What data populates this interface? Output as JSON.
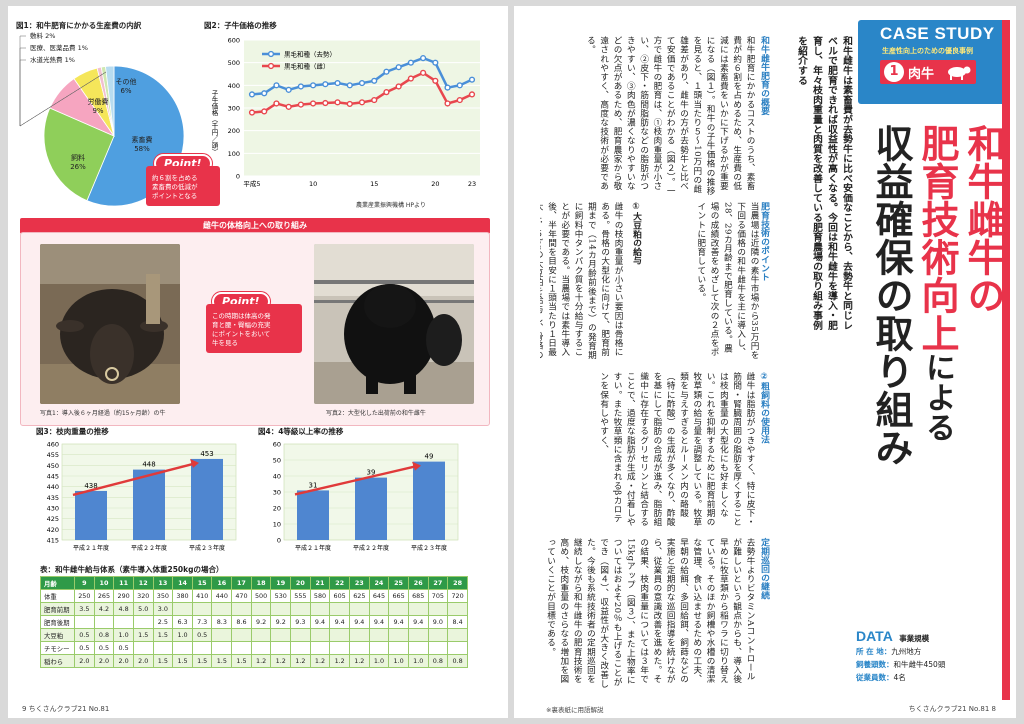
{
  "left_page": {
    "fig1": {
      "title": "図1：和牛肥育にかかる生産費の内訳",
      "point_label": "Point!",
      "point_text": [
        "約６割を占める",
        "素畜費の低減が",
        "ポイントとなる"
      ]
    },
    "fig2": {
      "title": "図2：子牛価格の推移",
      "y_label": "子牛価格（千円／頭）",
      "source": "農業産業振興機構 HPより"
    },
    "banner": "雌牛の体格向上への取り組み",
    "photo1": {
      "caption": "写真1：導入後６ヶ月経過（約15ヶ月齢）の牛",
      "point_label": "Point!",
      "point_text": [
        "この時期は体高の発",
        "育と腰・臀幅の充実",
        "にポイントをおいて",
        "牛を見る"
      ]
    },
    "photo2": {
      "caption": "写真2：大型化した出荷前の和牛雌牛"
    },
    "fig3": {
      "title": "図3：枝肉重量の推移"
    },
    "fig4": {
      "title": "図4：4等級以上率の推移"
    },
    "table": {
      "title": "表：和牛雌牛給与体系（素牛導入体重250kgの場合）",
      "header": [
        "月齢",
        "9",
        "10",
        "11",
        "12",
        "13",
        "14",
        "15",
        "16",
        "17",
        "18",
        "19",
        "20",
        "21",
        "22",
        "23",
        "24",
        "25",
        "26",
        "27",
        "28"
      ],
      "rows": [
        [
          "体重",
          "250",
          "265",
          "290",
          "320",
          "350",
          "380",
          "410",
          "440",
          "470",
          "500",
          "530",
          "555",
          "580",
          "605",
          "625",
          "645",
          "665",
          "685",
          "705",
          "720"
        ],
        [
          "肥育前期",
          "3.5",
          "4.2",
          "4.8",
          "5.0",
          "3.0",
          "",
          "",
          "",
          "",
          "",
          "",
          "",
          "",
          "",
          "",
          "",
          "",
          "",
          "",
          ""
        ],
        [
          "肥育後期",
          "",
          "",
          "",
          "",
          "2.5",
          "6.3",
          "7.3",
          "8.3",
          "8.6",
          "9.2",
          "9.2",
          "9.3",
          "9.4",
          "9.4",
          "9.4",
          "9.4",
          "9.4",
          "9.4",
          "9.0",
          "8.4"
        ],
        [
          "大豆粕",
          "0.5",
          "0.8",
          "1.0",
          "1.5",
          "1.5",
          "1.0",
          "0.5",
          "",
          "",
          "",
          "",
          "",
          "",
          "",
          "",
          "",
          "",
          "",
          "",
          ""
        ],
        [
          "チモシー",
          "0.5",
          "0.5",
          "0.5",
          "",
          "",
          "",
          "",
          "",
          "",
          "",
          "",
          "",
          "",
          "",
          "",
          "",
          "",
          "",
          "",
          ""
        ],
        [
          "稲わら",
          "2.0",
          "2.0",
          "2.0",
          "2.0",
          "1.5",
          "1.5",
          "1.5",
          "1.5",
          "1.5",
          "1.2",
          "1.2",
          "1.2",
          "1.2",
          "1.2",
          "1.2",
          "1.0",
          "1.0",
          "1.0",
          "0.8",
          "0.8"
        ]
      ]
    },
    "footer": "9 ちくさんクラブ21 No.81"
  },
  "right_page": {
    "case_study": "CASE STUDY",
    "case_sub": "生産性向上のための優良事例",
    "badge_number": "1",
    "badge_label": "肉牛",
    "headline_l1": "和牛雌牛の",
    "headline_l2a": "肥育技術向上",
    "headline_l2b": "による",
    "headline_l3": "収益確保の取り組み",
    "lead": "和牛雌牛は素畜費が去勢牛に比べ安価なことから、去勢牛と同じレベルで肥育できれば収益性が高くなる。今回は和牛雌牛を導入・肥育し、年々枝肉重量と肉質を改善している肥育農場の取り組み事例を紹介する",
    "sections": [
      {
        "heading": "和牛雌牛肥育の概要",
        "text": "和牛肥育にかかるコストのうち、素畜費が約６割を占めるため、生産費の低減には素畜費をいかに下げるかが重要になる（図１）。和牛の子牛価格の推移を見ると、１頭当たり５〜10万円の雌雄差があり、雌牛の方が去勢牛と比べて安価であることがわかる（図２）。一方で雌牛の肥育は、①枝肉重量が小さい、②皮下・筋間脂肪などの脂肪がつきやすい、③肉色が濃くなりやすいなどの欠点があるため、肥育農家から敬遠されやすく、高度な技術が必要である。"
      },
      {
        "heading": "肥育技術のポイント",
        "text": "当農場は近隣の素牛市場から35万円を下回る価格の和牛雌牛を主に導入し、28、29カ月齢まで肥育している。農場の成績改善をめざして次の２点をポイントに肥育している。"
      },
      {
        "heading": "①大豆粕の給与",
        "text": "雌牛の枝肉重量が小さい要因は骨格にある。骨格の大型化に向けて、肥育前期まで（14カ月齢前後まで）の発育期に飼料中タンパク質を十分給与することが必要である。当農場では素牛導入後、半年間を目安に１頭当たり１日最大１．５kgの大豆粕を給与し、骨格の発育を促進。ただし大豆粕の増給スピードが早すぎると下痢を起こしやすいため、１カ月で５００g程度の増給にとどめるよう注意している。"
      },
      {
        "heading": "②粗飼料の使用法",
        "text": "雌牛は脂肪がつきやすく、特に皮下・筋間・腎臓周囲の脂肪を厚くすることは枝肉重量の大型化にも好ましくない。これを抑制するために肥育前期の牧草類の給与量を調整している。牧草類を与えすぎるとルーメン内の酪酸（特に酢酸）の生成が多くなり、酢酸を基にして脂肪の合成が進み、脂肪組織中に存在するグリセリンと結合することで、過度な脂肪が生成・付着しやすい。また牧草類に含まれるβカロテンを保有しやすく、"
      },
      {
        "heading": "定期巡回の継続",
        "text": "去勢牛よりビタミンAコントロールが難しいという観点からも、導入後早めに牧草類から稲ワラに切り替えている。そのほか飼槽や水槽の清潔な管理、食い込ませるための工夫、早朝の給餌、多回給餌、飼蒔などの実施と定期的な巡回指導を続けながら、従業員の意識改善を進めた。その結果、枝肉重量については３年で15kgアップ（図３）、また上物率についてはおよそ20％も上げることができ（図４）、収益性が大きく改善した。今後も系統技術者の定期巡回を継続しながら和牛雌牛の肥育技術を高め、枝肉重量のさらなる増加を図っていくことが目標である。"
      }
    ],
    "data_box": {
      "title": "DATA",
      "subtitle": "事業規模",
      "rows": [
        {
          "k": "所 在 地：",
          "v": "九州地方"
        },
        {
          "k": "飼養頭数：",
          "v": "和牛雌牛450頭"
        },
        {
          "k": "従業員数：",
          "v": "4名"
        }
      ]
    },
    "glossary_note": "※裏表紙に用語解説",
    "footer": "ちくさんクラブ21 No.81 8"
  },
  "chart_data": [
    {
      "type": "pie",
      "title": "図1：和牛肥育にかかる生産費の内訳",
      "labels": [
        "素畜費",
        "飼料",
        "労働費",
        "その他",
        "水道光熱費",
        "医療、医薬品費",
        "敷料"
      ],
      "values": [
        58,
        26,
        9,
        6,
        1,
        1,
        2
      ],
      "colors": [
        "#4f9fe0",
        "#8fcf5a",
        "#f6a5c0",
        "#f5e65a",
        "#f0c0d0",
        "#cfe8b0",
        "#b8dcf0"
      ]
    },
    {
      "type": "line",
      "title": "図2：子牛価格の推移",
      "ylabel": "子牛価格（千円／頭）",
      "x_ticks": [
        "平成5",
        "10",
        "15",
        "20",
        "23"
      ],
      "x": [
        5,
        6,
        7,
        8,
        9,
        10,
        11,
        12,
        13,
        14,
        15,
        16,
        17,
        18,
        19,
        20,
        21,
        22,
        23
      ],
      "ylim": [
        0,
        600
      ],
      "series": [
        {
          "name": "黒毛和種（去勢）",
          "color": "#4a8fd8",
          "values": [
            360,
            365,
            400,
            380,
            395,
            400,
            405,
            410,
            400,
            410,
            420,
            460,
            480,
            500,
            520,
            500,
            390,
            400,
            425
          ]
        },
        {
          "name": "黒毛和種（雌）",
          "color": "#e8474e",
          "values": [
            280,
            285,
            320,
            305,
            315,
            320,
            322,
            325,
            318,
            325,
            335,
            370,
            395,
            430,
            455,
            420,
            320,
            335,
            360
          ]
        }
      ]
    },
    {
      "type": "bar",
      "title": "図3：枝肉重量の推移",
      "categories": [
        "平成２１年度",
        "平成２２年度",
        "平成２３年度"
      ],
      "values": [
        438,
        448,
        453
      ],
      "ylim": [
        415,
        460
      ],
      "y_ticks": [
        415,
        420,
        425,
        430,
        435,
        440,
        445,
        450,
        455,
        460
      ]
    },
    {
      "type": "bar",
      "title": "図4：4等級以上率の推移",
      "categories": [
        "平成２１年度",
        "平成２２年度",
        "平成２３年度"
      ],
      "values": [
        31,
        39,
        49
      ],
      "ylim": [
        0,
        60
      ],
      "y_ticks": [
        0,
        10,
        20,
        30,
        40,
        50,
        60
      ]
    }
  ]
}
